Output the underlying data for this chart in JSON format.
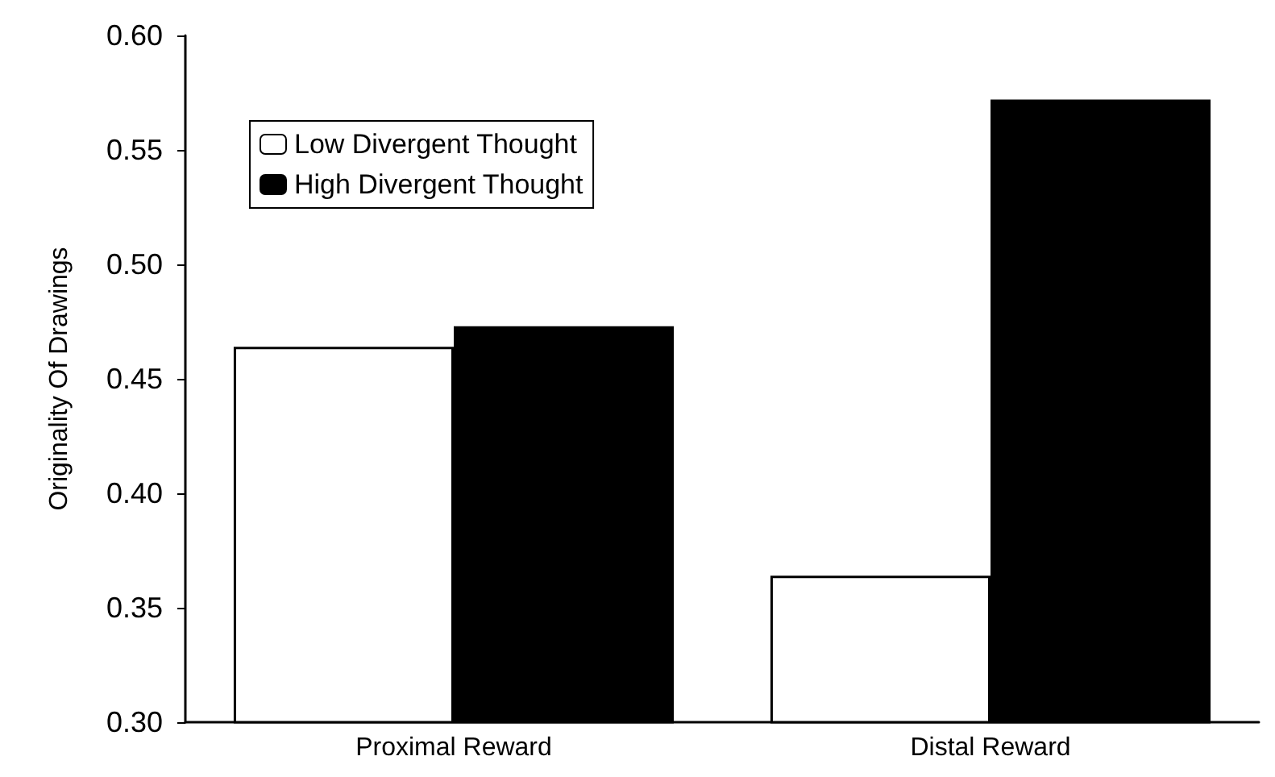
{
  "chart_data": {
    "type": "bar",
    "ylabel": "Originality Of Drawings",
    "categories": [
      "Proximal Reward",
      "Distal Reward"
    ],
    "series": [
      {
        "name": "Low Divergent Thought",
        "color": "#ffffff",
        "values": [
          0.464,
          0.364
        ]
      },
      {
        "name": "High Divergent Thought",
        "color": "#000000",
        "values": [
          0.473,
          0.572
        ]
      }
    ],
    "ylim": [
      0.3,
      0.6
    ],
    "yticks": [
      {
        "value": 0.3,
        "label": "0.30"
      },
      {
        "value": 0.35,
        "label": "0.35"
      },
      {
        "value": 0.4,
        "label": "0.40"
      },
      {
        "value": 0.45,
        "label": "0.45"
      },
      {
        "value": 0.5,
        "label": "0.50"
      },
      {
        "value": 0.55,
        "label": "0.55"
      },
      {
        "value": 0.6,
        "label": "0.60"
      }
    ],
    "grid": false,
    "legend": "top left"
  }
}
